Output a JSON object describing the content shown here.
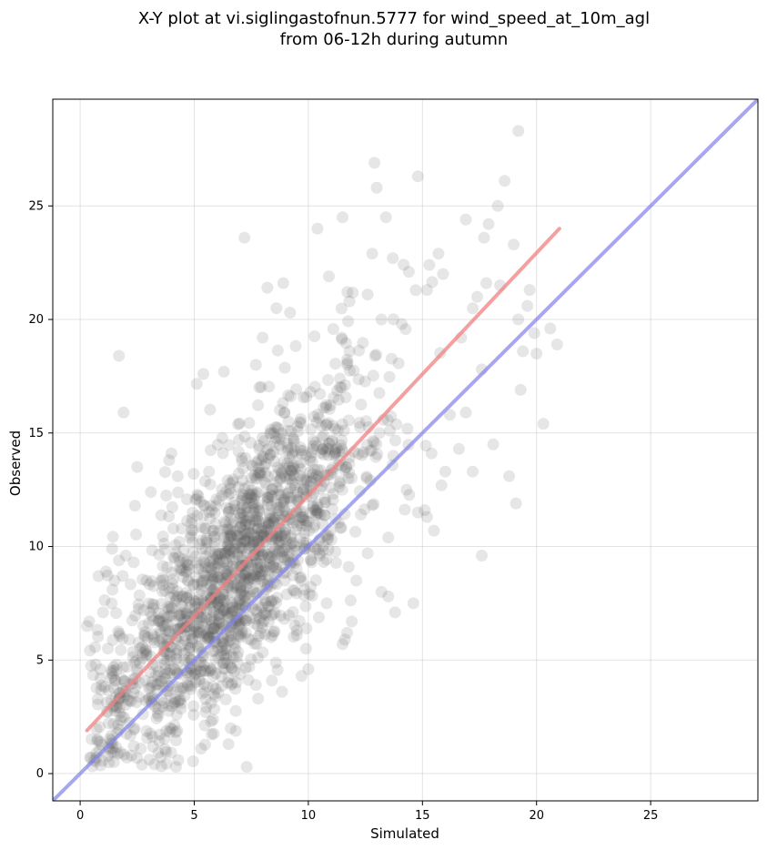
{
  "chart_data": {
    "type": "scatter",
    "title": "X-Y plot at vi.siglingastofnun.5777 for wind_speed_at_10m_agl",
    "subtitle": "from 06-12h during autumn",
    "xlabel": "Simulated",
    "ylabel": "Observed",
    "xlim": [
      -1.2,
      29.7
    ],
    "ylim": [
      -1.2,
      29.7
    ],
    "xticks": [
      0,
      5,
      10,
      15,
      20,
      25
    ],
    "yticks": [
      0,
      5,
      10,
      15,
      20,
      25
    ],
    "grid": true,
    "point_color": "#555555",
    "point_opacity": 0.15,
    "fit_line": {
      "color": "#f08080",
      "x": [
        0.3,
        21.0
      ],
      "y": [
        1.9,
        24.0
      ]
    },
    "identity_line": {
      "color": "#8080ee",
      "x": [
        -1.2,
        29.7
      ],
      "y": [
        -1.2,
        29.7
      ]
    },
    "outliers": [
      [
        7.2,
        23.6
      ],
      [
        1.7,
        18.4
      ],
      [
        1.9,
        15.9
      ],
      [
        19.2,
        28.3
      ],
      [
        12.9,
        26.9
      ],
      [
        14.8,
        26.3
      ],
      [
        13.0,
        25.8
      ],
      [
        18.6,
        26.1
      ],
      [
        18.3,
        25.0
      ],
      [
        11.5,
        24.5
      ],
      [
        13.4,
        24.5
      ],
      [
        10.4,
        24.0
      ],
      [
        16.9,
        24.4
      ],
      [
        17.9,
        24.2
      ],
      [
        17.7,
        23.6
      ],
      [
        19.0,
        23.3
      ],
      [
        19.2,
        20.0
      ],
      [
        19.6,
        20.6
      ],
      [
        19.7,
        21.3
      ],
      [
        19.9,
        19.4
      ],
      [
        20.6,
        19.6
      ],
      [
        20.9,
        18.9
      ],
      [
        19.4,
        18.6
      ],
      [
        20.0,
        18.5
      ],
      [
        19.3,
        16.9
      ],
      [
        20.3,
        15.4
      ],
      [
        18.8,
        13.1
      ],
      [
        19.1,
        11.9
      ],
      [
        18.1,
        14.5
      ],
      [
        17.6,
        9.6
      ],
      [
        17.2,
        13.3
      ],
      [
        16.0,
        13.3
      ],
      [
        16.6,
        14.3
      ],
      [
        15.5,
        10.7
      ],
      [
        15.2,
        11.3
      ],
      [
        14.8,
        11.5
      ],
      [
        15.1,
        11.6
      ],
      [
        14.6,
        7.5
      ],
      [
        13.2,
        8.0
      ],
      [
        13.5,
        7.8
      ],
      [
        13.8,
        7.1
      ],
      [
        12.1,
        8.5
      ],
      [
        11.9,
        6.7
      ],
      [
        11.7,
        6.2
      ],
      [
        11.5,
        5.7
      ],
      [
        11.6,
        5.9
      ],
      [
        10.0,
        4.6
      ],
      [
        9.7,
        4.3
      ],
      [
        9.9,
        5.5
      ],
      [
        7.3,
        0.3
      ],
      [
        6.5,
        1.3
      ],
      [
        4.2,
        0.3
      ],
      [
        4.3,
        0.6
      ],
      [
        0.7,
        0.7
      ],
      [
        0.8,
        8.7
      ],
      [
        0.3,
        6.5
      ],
      [
        0.4,
        6.7
      ],
      [
        1.0,
        7.1
      ],
      [
        2.5,
        13.5
      ],
      [
        3.1,
        12.4
      ],
      [
        4.0,
        14.1
      ],
      [
        3.9,
        13.8
      ],
      [
        8.2,
        21.4
      ],
      [
        8.9,
        21.6
      ],
      [
        9.2,
        20.3
      ],
      [
        8.6,
        20.5
      ],
      [
        10.9,
        21.9
      ],
      [
        11.8,
        20.8
      ],
      [
        12.6,
        21.1
      ],
      [
        12.8,
        22.9
      ],
      [
        13.7,
        22.7
      ],
      [
        14.4,
        22.1
      ],
      [
        15.3,
        22.4
      ],
      [
        15.7,
        22.9
      ],
      [
        15.2,
        21.3
      ],
      [
        15.9,
        22.0
      ],
      [
        14.1,
        19.8
      ],
      [
        13.2,
        20.0
      ],
      [
        6.3,
        17.7
      ],
      [
        7.7,
        18.0
      ],
      [
        8.0,
        19.2
      ],
      [
        5.4,
        17.6
      ],
      [
        2.0,
        9.6
      ],
      [
        2.4,
        11.8
      ],
      [
        1.4,
        9.9
      ],
      [
        17.4,
        21.0
      ],
      [
        18.4,
        21.5
      ],
      [
        17.8,
        21.6
      ],
      [
        16.7,
        19.2
      ],
      [
        17.6,
        17.8
      ],
      [
        16.9,
        15.9
      ],
      [
        16.2,
        15.8
      ],
      [
        15.4,
        14.1
      ],
      [
        14.3,
        12.5
      ],
      [
        13.5,
        10.4
      ],
      [
        12.6,
        9.7
      ],
      [
        10.8,
        7.5
      ],
      [
        9.5,
        6.1
      ],
      [
        8.4,
        4.1
      ],
      [
        7.8,
        3.3
      ],
      [
        6.6,
        2.0
      ],
      [
        5.3,
        1.1
      ]
    ]
  }
}
